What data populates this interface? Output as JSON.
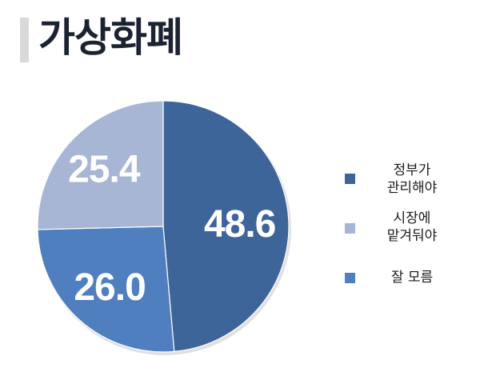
{
  "title": "가상화폐",
  "chart_data": {
    "type": "pie",
    "title": "가상화폐",
    "start_angle_deg": 90,
    "direction": "clockwise",
    "slices": [
      {
        "label": "정부가\n관리해야",
        "value": 48.6,
        "color": "#3e6599"
      },
      {
        "label": "잘 모름",
        "value": 26.0,
        "color": "#4f7fbf"
      },
      {
        "label": "시장에\n맡겨둬야",
        "value": 25.4,
        "color": "#a7b6d5"
      }
    ],
    "legend": {
      "placement": "right",
      "entries": [
        {
          "label": "정부가\n관리해야",
          "color": "#3e6599"
        },
        {
          "label": "시장에\n맡겨둬야",
          "color": "#a7b6d5"
        },
        {
          "label": "잘 모름",
          "color": "#4f7fbf"
        }
      ]
    }
  }
}
